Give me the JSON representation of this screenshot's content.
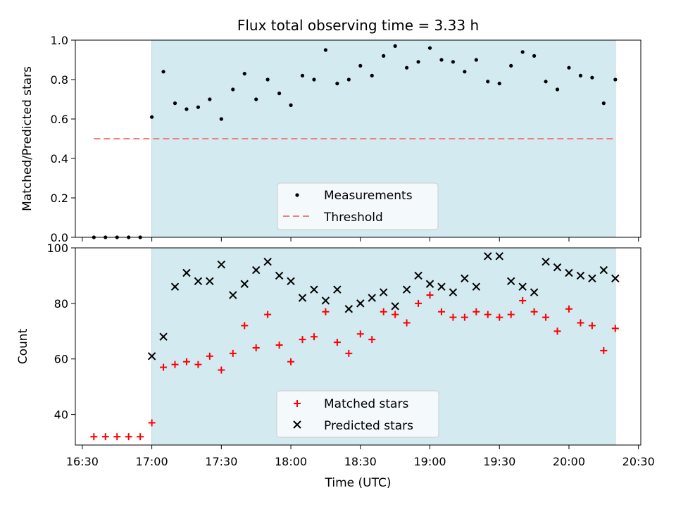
{
  "chart_data": [
    {
      "type": "scatter",
      "title": "Flux total observing time = 3.33 h",
      "ylabel": "Matched/Predicted stars",
      "xlabel": "",
      "ylim": [
        0,
        1.0
      ],
      "yticks": [
        "0.0",
        "0.2",
        "0.4",
        "0.6",
        "0.8",
        "1.0"
      ],
      "shaded_region": {
        "from": "17:00",
        "to": "20:20",
        "color": "#d3eaf0"
      },
      "legend_position": "lower-center",
      "legend": [
        "Measurements",
        "Threshold"
      ],
      "series": [
        {
          "name": "Measurements",
          "color": "#000000",
          "marker": "dot",
          "x": [
            "16:35",
            "16:40",
            "16:45",
            "16:50",
            "16:55",
            "17:00",
            "17:05",
            "17:10",
            "17:15",
            "17:20",
            "17:25",
            "17:30",
            "17:35",
            "17:40",
            "17:45",
            "17:50",
            "17:55",
            "18:00",
            "18:05",
            "18:10",
            "18:15",
            "18:20",
            "18:25",
            "18:30",
            "18:35",
            "18:40",
            "18:45",
            "18:50",
            "18:55",
            "19:00",
            "19:05",
            "19:10",
            "19:15",
            "19:20",
            "19:25",
            "19:30",
            "19:35",
            "19:40",
            "19:45",
            "19:50",
            "19:55",
            "20:00",
            "20:05",
            "20:10",
            "20:15",
            "20:20"
          ],
          "values": [
            0,
            0,
            0,
            0,
            0,
            0.61,
            0.84,
            0.68,
            0.65,
            0.66,
            0.7,
            0.6,
            0.75,
            0.83,
            0.7,
            0.8,
            0.73,
            0.67,
            0.82,
            0.8,
            0.95,
            0.78,
            0.8,
            0.87,
            0.82,
            0.92,
            0.97,
            0.86,
            0.89,
            0.96,
            0.9,
            0.89,
            0.84,
            0.9,
            0.79,
            0.78,
            0.87,
            0.94,
            0.92,
            0.79,
            0.75,
            0.86,
            0.82,
            0.81,
            0.68,
            0.8
          ]
        },
        {
          "name": "Threshold",
          "color": "#f08080",
          "style": "dashed",
          "x": [
            "16:35",
            "20:20"
          ],
          "values": [
            0.5,
            0.5
          ]
        }
      ]
    },
    {
      "type": "scatter",
      "title": "",
      "ylabel": "Count",
      "xlabel": "Time (UTC)",
      "ylim": [
        29,
        100
      ],
      "yticks": [
        "40",
        "60",
        "80",
        "100"
      ],
      "xticks": [
        "16:30",
        "17:00",
        "17:30",
        "18:00",
        "18:30",
        "19:00",
        "19:30",
        "20:00",
        "20:30"
      ],
      "shaded_region": {
        "from": "17:00",
        "to": "20:20",
        "color": "#d3eaf0"
      },
      "legend_position": "lower-center",
      "legend": [
        "Matched stars",
        "Predicted stars"
      ],
      "series": [
        {
          "name": "Matched stars",
          "color": "#ff0000",
          "marker": "plus",
          "x": [
            "16:35",
            "16:40",
            "16:45",
            "16:50",
            "16:55",
            "17:00",
            "17:05",
            "17:10",
            "17:15",
            "17:20",
            "17:25",
            "17:30",
            "17:35",
            "17:40",
            "17:45",
            "17:50",
            "17:55",
            "18:00",
            "18:05",
            "18:10",
            "18:15",
            "18:20",
            "18:25",
            "18:30",
            "18:35",
            "18:40",
            "18:45",
            "18:50",
            "18:55",
            "19:00",
            "19:05",
            "19:10",
            "19:15",
            "19:20",
            "19:25",
            "19:30",
            "19:35",
            "19:40",
            "19:45",
            "19:50",
            "19:55",
            "20:00",
            "20:05",
            "20:10",
            "20:15",
            "20:20"
          ],
          "values": [
            32,
            32,
            32,
            32,
            32,
            37,
            57,
            58,
            59,
            58,
            61,
            56,
            62,
            72,
            64,
            76,
            65,
            59,
            67,
            68,
            77,
            66,
            62,
            69,
            67,
            77,
            76,
            73,
            80,
            83,
            77,
            75,
            75,
            77,
            76,
            75,
            76,
            81,
            77,
            75,
            70,
            78,
            73,
            72,
            63,
            71
          ]
        },
        {
          "name": "Predicted stars",
          "color": "#000000",
          "marker": "x",
          "x": [
            "17:00",
            "17:05",
            "17:10",
            "17:15",
            "17:20",
            "17:25",
            "17:30",
            "17:35",
            "17:40",
            "17:45",
            "17:50",
            "17:55",
            "18:00",
            "18:05",
            "18:10",
            "18:15",
            "18:20",
            "18:25",
            "18:30",
            "18:35",
            "18:40",
            "18:45",
            "18:50",
            "18:55",
            "19:00",
            "19:05",
            "19:10",
            "19:15",
            "19:20",
            "19:25",
            "19:30",
            "19:35",
            "19:40",
            "19:45",
            "19:50",
            "19:55",
            "20:00",
            "20:05",
            "20:10",
            "20:15",
            "20:20"
          ],
          "values": [
            61,
            68,
            86,
            91,
            88,
            88,
            94,
            83,
            87,
            92,
            95,
            90,
            88,
            82,
            85,
            81,
            85,
            78,
            80,
            82,
            84,
            79,
            85,
            90,
            87,
            86,
            84,
            89,
            86,
            97,
            97,
            88,
            86,
            84,
            95,
            93,
            91,
            90,
            89,
            92,
            89
          ]
        }
      ]
    }
  ]
}
